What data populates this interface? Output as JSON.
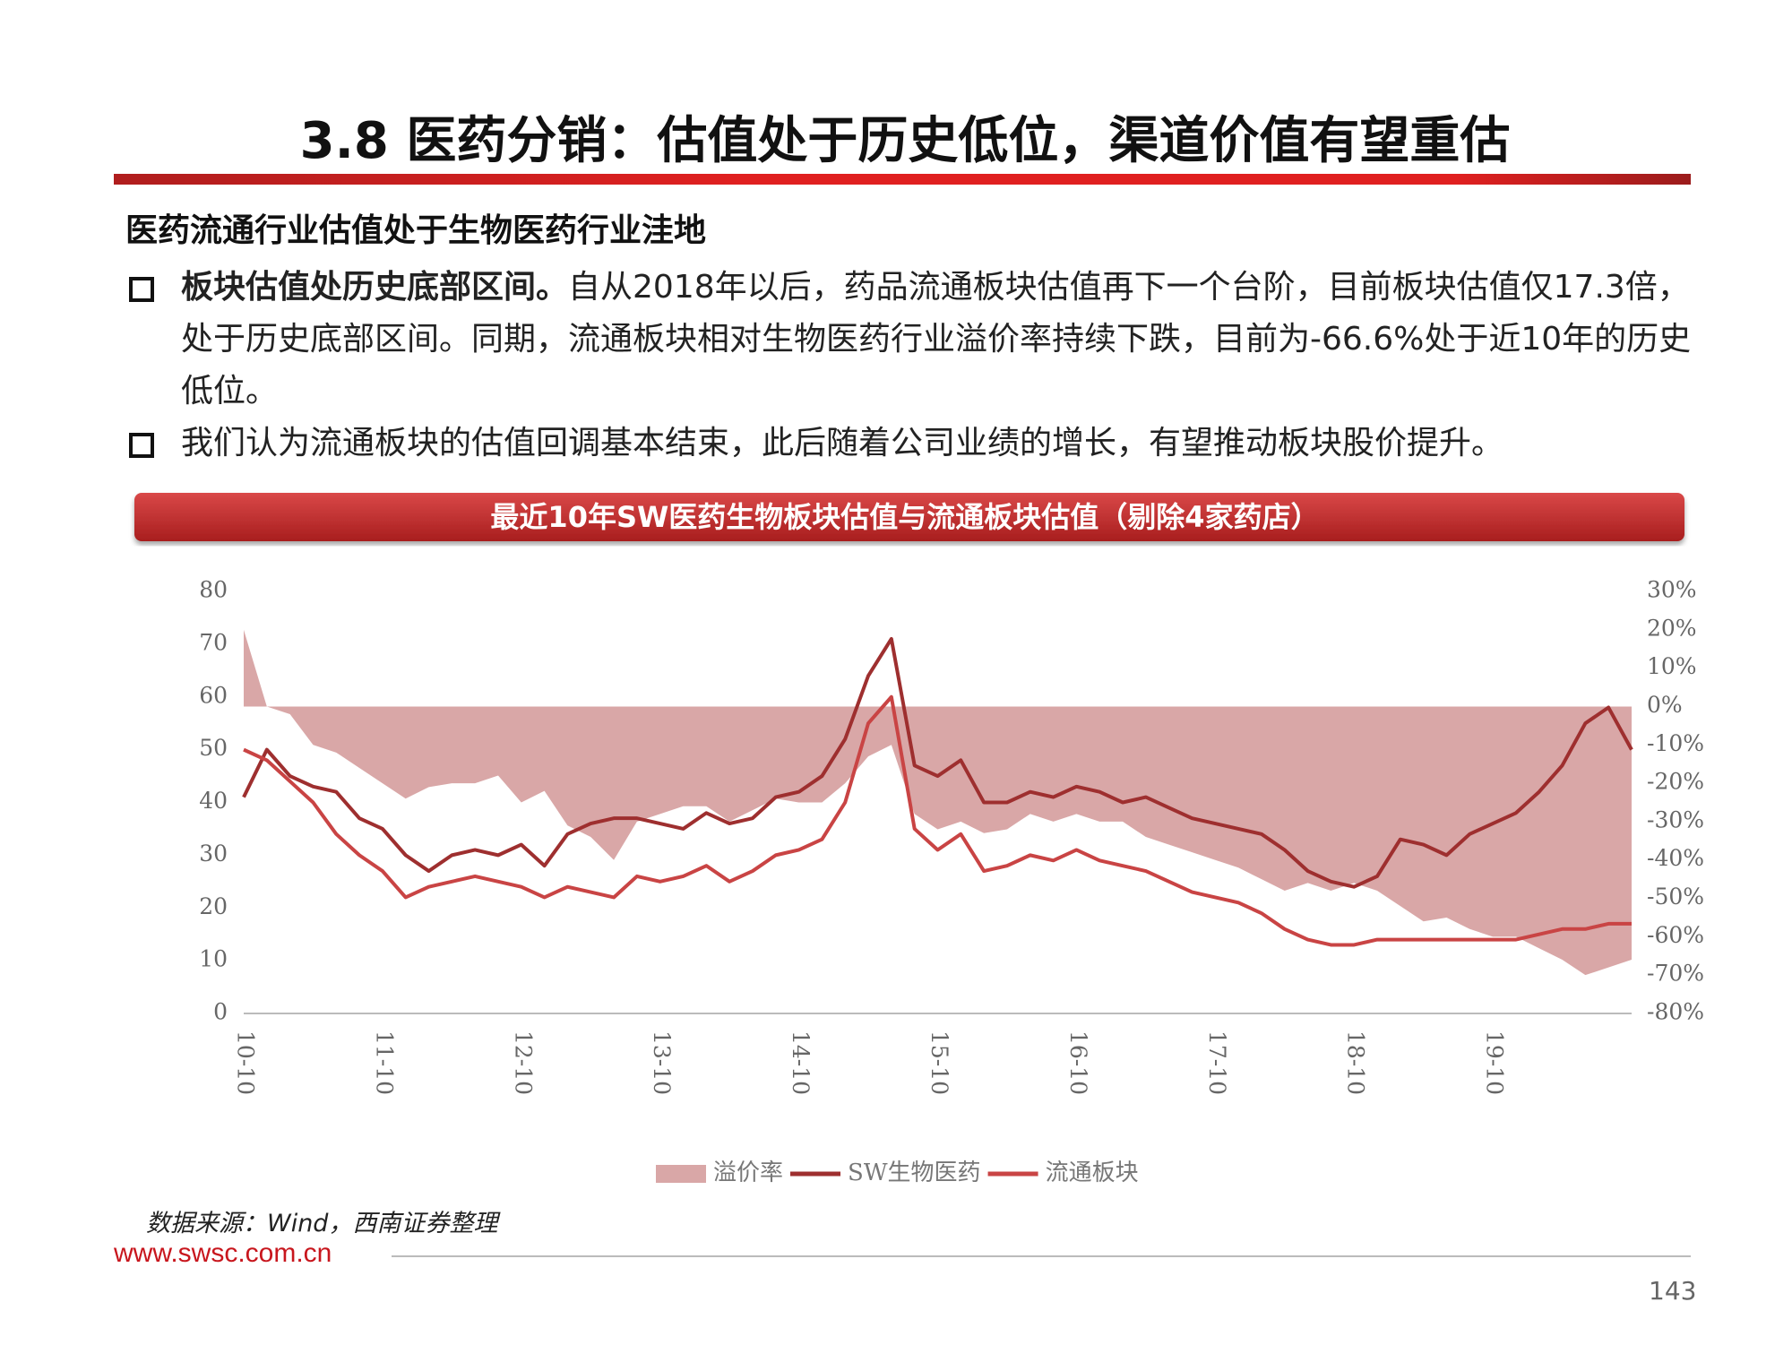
{
  "header": {
    "title": "3.8 医药分销：估值处于历史低位，渠道价值有望重估"
  },
  "section_title": "医药流通行业估值处于生物医药行业洼地",
  "bullets": [
    {
      "bold": "板块估值处历史底部区间。",
      "text": "自从2018年以后，药品流通板块估值再下一个台阶，目前板块估值仅17.3倍，处于历史底部区间。同期，流通板块相对生物医药行业溢价率持续下跌，目前为-66.6%处于近10年的历史低位。"
    },
    {
      "text": "我们认为流通板块的估值回调基本结束，此后随着公司业绩的增长，有望推动板块股价提升。"
    }
  ],
  "chart_data": {
    "type": "line",
    "title": "最近10年SW医药生物板块估值与流通板块估值（剔除4家药店）",
    "categories": [
      "10-10",
      null,
      null,
      null,
      null,
      null,
      "11-10",
      null,
      null,
      null,
      null,
      null,
      "12-10",
      null,
      null,
      null,
      null,
      null,
      "13-10",
      null,
      null,
      null,
      null,
      null,
      "14-10",
      null,
      null,
      null,
      null,
      null,
      "15-10",
      null,
      null,
      null,
      null,
      null,
      "16-10",
      null,
      null,
      null,
      null,
      null,
      "17-10",
      null,
      null,
      null,
      null,
      null,
      "18-10",
      null,
      null,
      null,
      null,
      null,
      "19-10",
      null,
      null,
      null,
      null,
      null,
      null
    ],
    "series": [
      {
        "name": "溢价率",
        "type": "area",
        "axis": "y2",
        "color": "#d9a7a7",
        "values": [
          20,
          0,
          -2,
          -10,
          -12,
          -16,
          -20,
          -24,
          -21,
          -20,
          -20,
          -18,
          -25,
          -22,
          -31,
          -34,
          -40,
          -30,
          -28,
          -26,
          -26,
          -30,
          -27,
          -24,
          -25,
          -25,
          -20,
          -13,
          -10,
          -28,
          -32,
          -30,
          -33,
          -32,
          -28,
          -30,
          -28,
          -30,
          -30,
          -34,
          -36,
          -38,
          -40,
          -42,
          -45,
          -48,
          -46,
          -48,
          -46,
          -48,
          -52,
          -56,
          -55,
          -58,
          -60,
          -60,
          -63,
          -66,
          -70,
          -68,
          -66
        ]
      },
      {
        "name": "SW生物医药",
        "color": "#9e2f2f",
        "values": [
          41,
          50,
          45,
          43,
          42,
          37,
          35,
          30,
          27,
          30,
          31,
          30,
          32,
          28,
          34,
          36,
          37,
          37,
          36,
          35,
          38,
          36,
          37,
          41,
          42,
          45,
          52,
          64,
          71,
          47,
          45,
          48,
          40,
          40,
          42,
          41,
          43,
          42,
          40,
          41,
          39,
          37,
          36,
          35,
          34,
          31,
          27,
          25,
          24,
          26,
          33,
          32,
          30,
          34,
          36,
          38,
          42,
          47,
          55,
          58,
          50
        ]
      },
      {
        "name": "流通板块",
        "color": "#c94444",
        "values": [
          50,
          48,
          44,
          40,
          34,
          30,
          27,
          22,
          24,
          25,
          26,
          25,
          24,
          22,
          24,
          23,
          22,
          26,
          25,
          26,
          28,
          25,
          27,
          30,
          31,
          33,
          40,
          55,
          60,
          35,
          31,
          34,
          27,
          28,
          30,
          29,
          31,
          29,
          28,
          27,
          25,
          23,
          22,
          21,
          19,
          16,
          14,
          13,
          13,
          14,
          14,
          14,
          14,
          14,
          14,
          14,
          15,
          16,
          16,
          17,
          17
        ]
      }
    ],
    "ylim": [
      0,
      80
    ],
    "yticks": [
      0,
      10,
      20,
      30,
      40,
      50,
      60,
      70,
      80
    ],
    "y2lim": [
      -80,
      30
    ],
    "y2ticks": [
      {
        "value": -80,
        "label": "-80%"
      },
      {
        "value": -70,
        "label": "-70%"
      },
      {
        "value": -60,
        "label": "-60%"
      },
      {
        "value": -50,
        "label": "-50%"
      },
      {
        "value": -40,
        "label": "-40%"
      },
      {
        "value": -30,
        "label": "-30%"
      },
      {
        "value": -20,
        "label": "-20%"
      },
      {
        "value": -10,
        "label": "-10%"
      },
      {
        "value": 0,
        "label": "0%"
      },
      {
        "value": 10,
        "label": "10%"
      },
      {
        "value": 20,
        "label": "20%"
      },
      {
        "value": 30,
        "label": "30%"
      }
    ],
    "grid": false
  },
  "footer": {
    "source": "数据来源：Wind，西南证券整理",
    "url": "www.swsc.com.cn",
    "page": "143"
  }
}
